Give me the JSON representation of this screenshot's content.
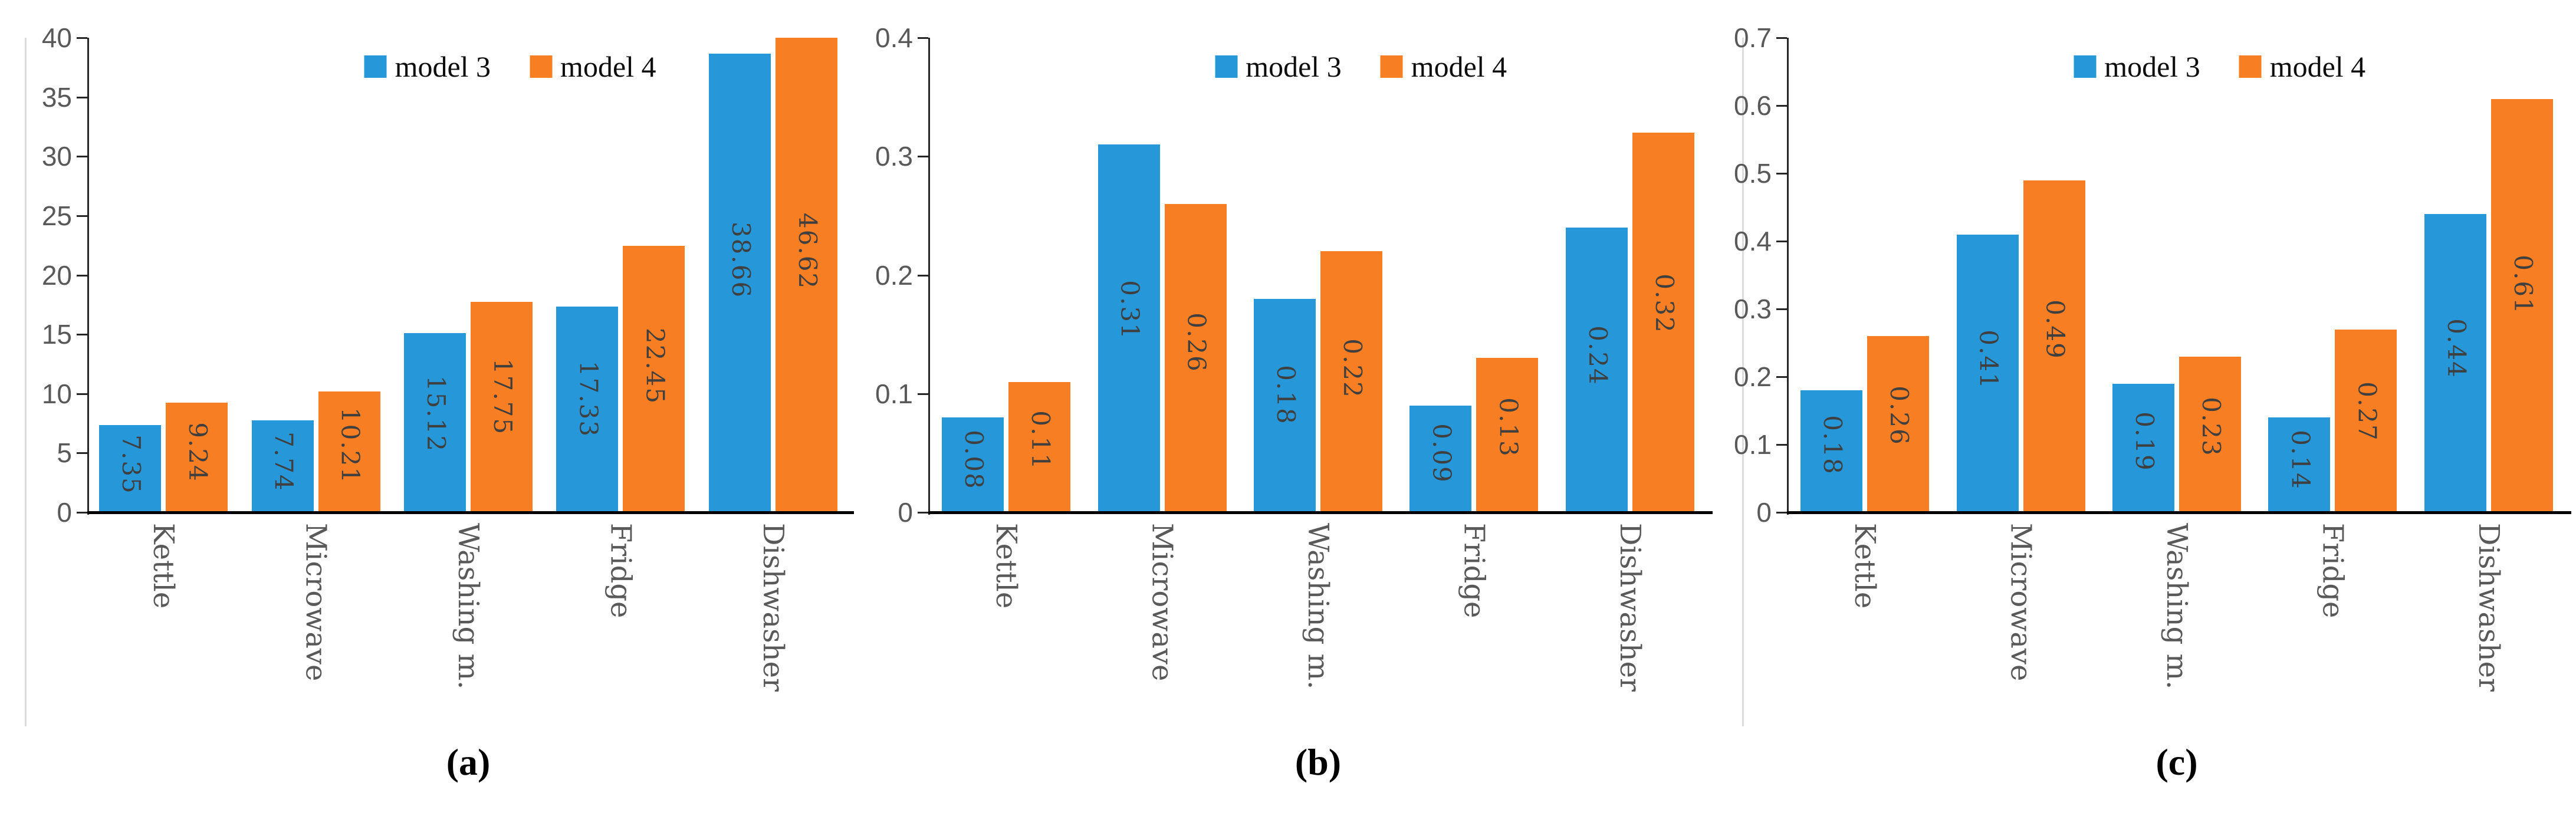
{
  "colors": {
    "model3": "#2697D8",
    "model4": "#F77E22",
    "axis": "#262626",
    "baseline": "#000000",
    "tick_label": "#595959",
    "category_label": "#595959",
    "value_label": "#3F3F3F",
    "legend_text": "#0D0D0D",
    "panel_edge": "#DCDCDC"
  },
  "legend": {
    "items": [
      {
        "label": "model 3",
        "color": "#2697D8"
      },
      {
        "label": "model 4",
        "color": "#F77E22"
      }
    ]
  },
  "chart_data": [
    {
      "type": "bar",
      "title": "(a)",
      "categories": [
        "Kettle",
        "Microwave",
        "Washing m.",
        "Fridge",
        "Dishwasher"
      ],
      "series": [
        {
          "name": "model 3",
          "values": [
            7.35,
            7.74,
            15.12,
            17.33,
            38.66
          ],
          "value_labels": [
            "7.35",
            "7.74",
            "15.12",
            "17.33",
            "38.66"
          ]
        },
        {
          "name": "model 4",
          "values": [
            9.24,
            10.21,
            17.75,
            22.45,
            46.62
          ],
          "value_labels": [
            "9.24",
            "10.21",
            "17.75",
            "22.45",
            "46.62"
          ]
        }
      ],
      "ylim": [
        0,
        40
      ],
      "ytick_labels": [
        "0",
        "5",
        "10",
        "15",
        "20",
        "25",
        "30",
        "35",
        "40"
      ],
      "grid": false,
      "legend_position": "top-center",
      "note": "model 4 Dishwasher bar (46.62) is clipped at axis maximum 40"
    },
    {
      "type": "bar",
      "title": "(b)",
      "categories": [
        "Kettle",
        "Microwave",
        "Washing m.",
        "Fridge",
        "Dishwasher"
      ],
      "series": [
        {
          "name": "model 3",
          "values": [
            0.08,
            0.31,
            0.18,
            0.09,
            0.24
          ],
          "value_labels": [
            "0.08",
            "0.31",
            "0.18",
            "0.09",
            "0.24"
          ]
        },
        {
          "name": "model 4",
          "values": [
            0.11,
            0.26,
            0.22,
            0.13,
            0.32
          ],
          "value_labels": [
            "0.11",
            "0.26",
            "0.22",
            "0.13",
            "0.32"
          ]
        }
      ],
      "ylim": [
        0,
        0.4
      ],
      "ytick_labels": [
        "0",
        "0.1",
        "0.2",
        "0.3",
        "0.4"
      ],
      "grid": false,
      "legend_position": "top-center",
      "note": ""
    },
    {
      "type": "bar",
      "title": "(c)",
      "categories": [
        "Kettle",
        "Microwave",
        "Washing m.",
        "Fridge",
        "Dishwasher"
      ],
      "series": [
        {
          "name": "model 3",
          "values": [
            0.18,
            0.41,
            0.19,
            0.14,
            0.44
          ],
          "value_labels": [
            "0.18",
            "0.41",
            "0.19",
            "0.14",
            "0.44"
          ]
        },
        {
          "name": "model 4",
          "values": [
            0.26,
            0.49,
            0.23,
            0.27,
            0.61
          ],
          "value_labels": [
            "0.26",
            "0.49",
            "0.23",
            "0.27",
            "0.61"
          ]
        }
      ],
      "ylim": [
        0,
        0.7
      ],
      "ytick_labels": [
        "0",
        "0.1",
        "0.2",
        "0.3",
        "0.4",
        "0.5",
        "0.6",
        "0.7"
      ],
      "grid": false,
      "legend_position": "top-center",
      "note": ""
    }
  ]
}
